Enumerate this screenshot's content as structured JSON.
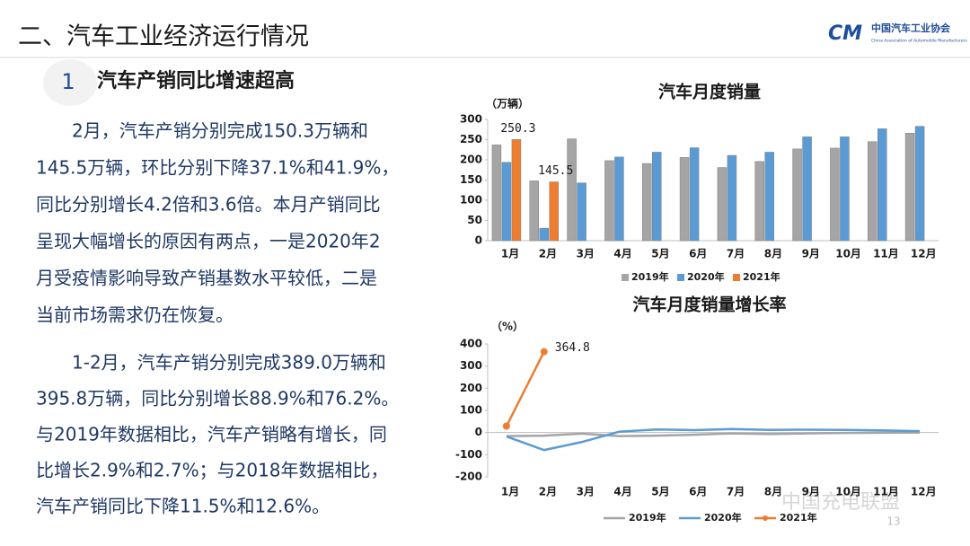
{
  "slide": {
    "title": "二、汽车工业经济运行情况",
    "logo": {
      "mark": "CM",
      "name": "中国汽车工业协会",
      "english": "China Association of Automobile Manufacturers"
    },
    "section": {
      "number": "1",
      "heading": "汽车产销同比增速超高"
    },
    "paragraphs": [
      [
        "2月，汽车产销分别完成150.3万辆和",
        "145.5万辆，环比分别下降37.1%和41.9%，",
        "同比分别增长4.2倍和3.6倍。本月产销同比",
        "呈现大幅增长的原因有两点，一是2020年2",
        "月受疫情影响导致产销基数水平较低，二是",
        "当前市场需求仍在恢复。"
      ],
      [
        "1-2月，汽车产销分别完成389.0万辆和",
        "395.8万辆，同比分别增长88.9%和76.2%。",
        "与2019年数据相比，汽车产销略有增长，同",
        "比增长2.9%和2.7%；与2018年数据相比，",
        "汽车产销同比下降11.5%和12.6%。"
      ]
    ],
    "watermark": "中国充电联盟",
    "page_number": "13"
  },
  "chart_data": [
    {
      "type": "bar",
      "title": "汽车月度销量",
      "y_label": "（万辆）",
      "categories": [
        "1月",
        "2月",
        "3月",
        "4月",
        "5月",
        "6月",
        "7月",
        "8月",
        "9月",
        "10月",
        "11月",
        "12月"
      ],
      "ylim": [
        0,
        300
      ],
      "yticks": [
        0,
        50,
        100,
        150,
        200,
        250,
        300
      ],
      "legend": "bottom",
      "series": [
        {
          "name": "2019年",
          "color": "#a5a5a5",
          "values": [
            237,
            148,
            252,
            198,
            191,
            206,
            181,
            196,
            227,
            229,
            245,
            266
          ]
        },
        {
          "name": "2020年",
          "color": "#5b9bd5",
          "values": [
            194,
            31,
            143,
            207,
            219,
            230,
            211,
            219,
            257,
            257,
            277,
            283
          ]
        },
        {
          "name": "2021年",
          "color": "#ed7d31",
          "values": [
            250.3,
            145.5,
            null,
            null,
            null,
            null,
            null,
            null,
            null,
            null,
            null,
            null
          ]
        }
      ]
    },
    {
      "type": "line",
      "title": "汽车月度销量增长率",
      "y_label": "（%）",
      "categories": [
        "1月",
        "2月",
        "3月",
        "4月",
        "5月",
        "6月",
        "7月",
        "8月",
        "9月",
        "10月",
        "11月",
        "12月"
      ],
      "ylim": [
        -200,
        400
      ],
      "yticks": [
        -200,
        -100,
        0,
        100,
        200,
        300,
        400
      ],
      "legend": "bottom",
      "series": [
        {
          "name": "2019年",
          "color": "#a5a5a5",
          "values": [
            -16,
            -14,
            -5,
            -16,
            -14,
            -10,
            -4,
            -7,
            -4,
            -2,
            -1,
            0
          ]
        },
        {
          "name": "2020年",
          "color": "#5b9bd5",
          "values": [
            -18,
            -79,
            -43,
            4,
            14,
            11,
            16,
            12,
            13,
            12,
            10,
            6
          ]
        },
        {
          "name": "2021年",
          "color": "#ed7d31",
          "values": [
            29,
            364.8,
            null,
            null,
            null,
            null,
            null,
            null,
            null,
            null,
            null,
            null
          ]
        }
      ]
    }
  ]
}
